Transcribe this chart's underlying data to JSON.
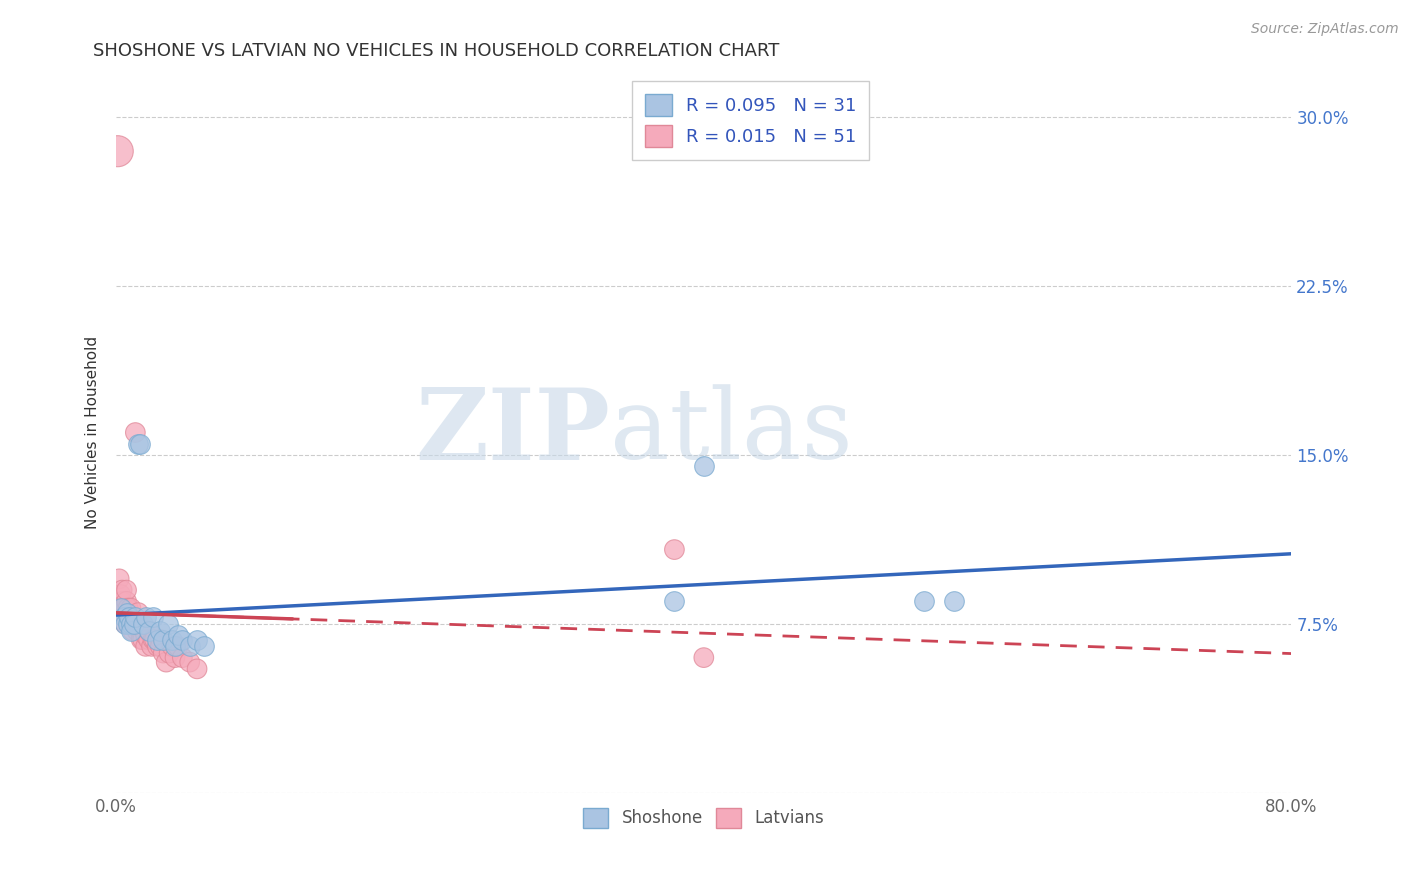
{
  "title": "SHOSHONE VS LATVIAN NO VEHICLES IN HOUSEHOLD CORRELATION CHART",
  "source": "Source: ZipAtlas.com",
  "ylabel": "No Vehicles in Household",
  "xlim": [
    0.0,
    0.8
  ],
  "ylim": [
    0.0,
    0.32
  ],
  "xticks": [
    0.0,
    0.1,
    0.2,
    0.3,
    0.4,
    0.5,
    0.6,
    0.7,
    0.8
  ],
  "xticklabels": [
    "0.0%",
    "",
    "",
    "",
    "",
    "",
    "",
    "",
    "80.0%"
  ],
  "yticks": [
    0.0,
    0.075,
    0.15,
    0.225,
    0.3
  ],
  "yticklabels": [
    "",
    "7.5%",
    "15.0%",
    "22.5%",
    "30.0%"
  ],
  "grid_color": "#cccccc",
  "background_color": "#ffffff",
  "shoshone_color": "#aac4e2",
  "latvian_color": "#f5aabb",
  "shoshone_edge": "#7aaad0",
  "latvian_edge": "#e08898",
  "shoshone_line_color": "#3366bb",
  "latvian_line_color": "#cc4455",
  "legend_label_shoshone": "R = 0.095   N = 31",
  "legend_label_latvian": "R = 0.015   N = 51",
  "watermark_zip": "ZIP",
  "watermark_atlas": "atlas",
  "shoshone_x": [
    0.003,
    0.005,
    0.006,
    0.007,
    0.008,
    0.009,
    0.01,
    0.01,
    0.012,
    0.013,
    0.015,
    0.016,
    0.018,
    0.02,
    0.022,
    0.025,
    0.028,
    0.03,
    0.032,
    0.035,
    0.038,
    0.04,
    0.042,
    0.045,
    0.05,
    0.055,
    0.06,
    0.38,
    0.55,
    0.57,
    0.4
  ],
  "shoshone_y": [
    0.082,
    0.078,
    0.075,
    0.08,
    0.075,
    0.078,
    0.075,
    0.072,
    0.075,
    0.078,
    0.155,
    0.155,
    0.075,
    0.078,
    0.072,
    0.078,
    0.068,
    0.072,
    0.068,
    0.075,
    0.068,
    0.065,
    0.07,
    0.068,
    0.065,
    0.068,
    0.065,
    0.085,
    0.085,
    0.085,
    0.145
  ],
  "latvian_x": [
    0.001,
    0.002,
    0.003,
    0.003,
    0.004,
    0.004,
    0.005,
    0.005,
    0.006,
    0.006,
    0.007,
    0.007,
    0.008,
    0.008,
    0.009,
    0.009,
    0.01,
    0.01,
    0.011,
    0.011,
    0.012,
    0.012,
    0.013,
    0.014,
    0.015,
    0.015,
    0.016,
    0.017,
    0.018,
    0.019,
    0.02,
    0.02,
    0.022,
    0.022,
    0.024,
    0.025,
    0.026,
    0.028,
    0.03,
    0.03,
    0.032,
    0.034,
    0.036,
    0.038,
    0.04,
    0.042,
    0.045,
    0.05,
    0.055,
    0.38,
    0.4
  ],
  "latvian_y": [
    0.285,
    0.095,
    0.088,
    0.082,
    0.085,
    0.09,
    0.078,
    0.082,
    0.078,
    0.075,
    0.085,
    0.09,
    0.078,
    0.082,
    0.075,
    0.078,
    0.075,
    0.082,
    0.072,
    0.075,
    0.075,
    0.078,
    0.16,
    0.072,
    0.075,
    0.08,
    0.072,
    0.068,
    0.068,
    0.072,
    0.065,
    0.07,
    0.068,
    0.072,
    0.065,
    0.068,
    0.068,
    0.065,
    0.068,
    0.065,
    0.062,
    0.058,
    0.062,
    0.065,
    0.06,
    0.065,
    0.06,
    0.058,
    0.055,
    0.108,
    0.06
  ],
  "shoshone_marker_size": 200,
  "latvian_marker_size": 200,
  "latvian_large_size": 500
}
